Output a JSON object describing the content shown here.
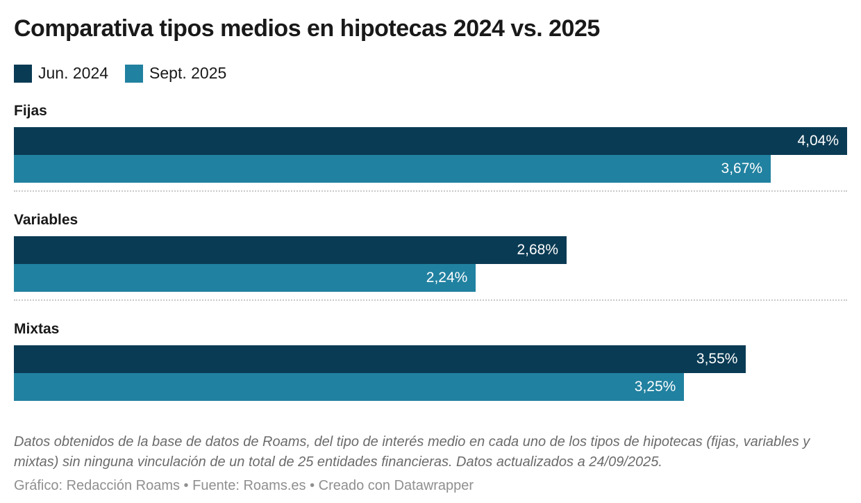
{
  "title": "Comparativa tipos medios en hipotecas 2024 vs. 2025",
  "colors": {
    "series1": "#0a3b54",
    "series2": "#2181a0",
    "text": "#191919",
    "notes_text": "#6b6b6b",
    "byline_text": "#8f8f8f",
    "separator": "#c8c8c8",
    "bar_value_text": "#ffffff",
    "background": "#ffffff"
  },
  "legend": [
    {
      "label": "Jun. 2024",
      "color": "#0a3b54"
    },
    {
      "label": "Sept. 2025",
      "color": "#2181a0"
    }
  ],
  "chart_data": {
    "type": "bar",
    "orientation": "horizontal",
    "title": "Comparativa tipos medios en hipotecas 2024 vs. 2025",
    "categories": [
      "Fijas",
      "Variables",
      "Mixtas"
    ],
    "series": [
      {
        "name": "Jun. 2024",
        "color": "#0a3b54",
        "values": [
          4.04,
          2.68,
          3.55
        ],
        "labels": [
          "4,04%",
          "2,68%",
          "3,55%"
        ]
      },
      {
        "name": "Sept. 2025",
        "color": "#2181a0",
        "values": [
          3.67,
          2.24,
          3.25
        ],
        "labels": [
          "3,67%",
          "2,24%",
          "3,25%"
        ]
      }
    ],
    "xlabel": "",
    "ylabel": "",
    "xmax": 4.04,
    "value_format": "percent with comma decimal, labels inside bar ends",
    "grid": false,
    "legend_position": "top-left",
    "group_separator": "dotted line"
  },
  "notes": "Datos obtenidos de la base de datos de Roams, del tipo de interés medio en cada uno de los tipos de hipotecas (fijas, variables y mixtas) sin ninguna vinculación de un total de 25 entidades financieras. Datos actualizados a 24/09/2025.",
  "byline": "Gráfico: Redacción Roams • Fuente: Roams.es • Creado con Datawrapper"
}
